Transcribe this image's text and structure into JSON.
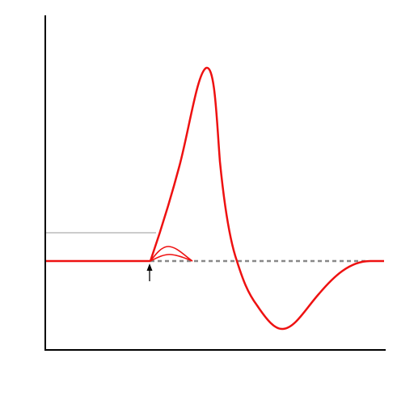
{
  "diagram": {
    "type": "action-potential-schematic",
    "axes": {
      "x_axis": true,
      "y_axis": true,
      "tick_labels": false
    },
    "curves": [
      {
        "name": "",
        "role": "action-potential",
        "color": "#ee1111"
      },
      {
        "name": "",
        "role": "subthreshold-response",
        "color": "#ee1111"
      },
      {
        "name": "",
        "role": "subthreshold-response",
        "color": "#ee1111"
      }
    ],
    "reference_lines": [
      {
        "role": "threshold",
        "style": "solid",
        "color": "#999999"
      },
      {
        "role": "resting-potential",
        "style": "dashed",
        "color": "#888888"
      }
    ],
    "markers": [
      {
        "role": "stimulus-arrow",
        "color": "#000000"
      }
    ]
  }
}
